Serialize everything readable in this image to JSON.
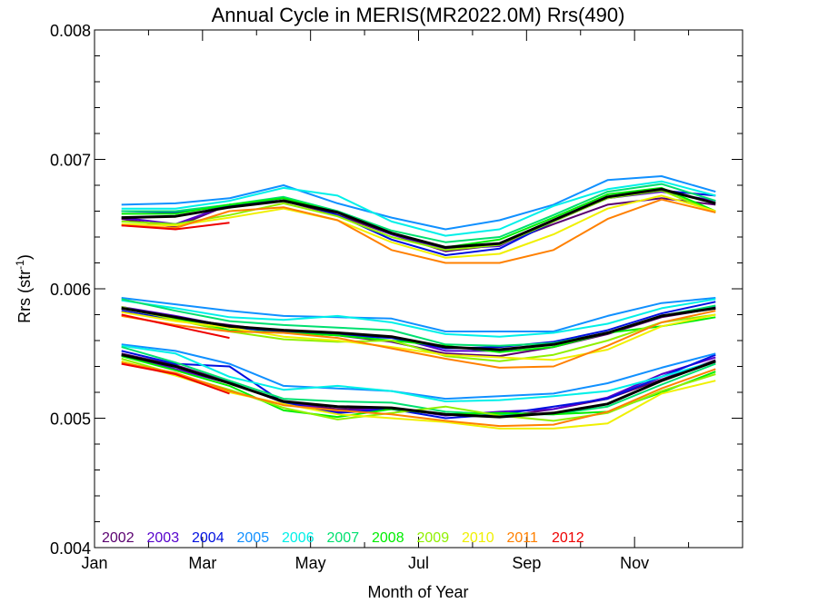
{
  "chart_data": {
    "type": "line",
    "title": "Annual Cycle in MERIS(MR2022.0M) Rrs(490)",
    "xlabel": "Month of Year",
    "ylabel": "Rrs (str",
    "ylabel_sup": "-1",
    "ylabel_close": ")",
    "xlim": [
      0,
      12
    ],
    "ylim": [
      0.004,
      0.008
    ],
    "xticks": [
      {
        "pos": 0,
        "label": "Jan"
      },
      {
        "pos": 2,
        "label": "Mar"
      },
      {
        "pos": 4,
        "label": "May"
      },
      {
        "pos": 6,
        "label": "Jul"
      },
      {
        "pos": 8,
        "label": "Sep"
      },
      {
        "pos": 10,
        "label": "Nov"
      }
    ],
    "yticks": [
      {
        "pos": 0.004,
        "label": "0.004"
      },
      {
        "pos": 0.005,
        "label": "0.005"
      },
      {
        "pos": 0.006,
        "label": "0.006"
      },
      {
        "pos": 0.007,
        "label": "0.007"
      },
      {
        "pos": 0.008,
        "label": "0.008"
      }
    ],
    "x": [
      0.5,
      1.5,
      2.5,
      3.5,
      4.5,
      5.5,
      6.5,
      7.5,
      8.5,
      9.5,
      10.5,
      11.5
    ],
    "legend_position": "bottom-left",
    "grid": false,
    "groups": [
      {
        "label_group": "upper",
        "series": [
          {
            "name": "2002",
            "color": "#5a0070",
            "values": [
              0.00654,
              0.00648,
              0.00665,
              0.00668,
              0.00657,
              0.00642,
              0.00629,
              0.00634,
              0.0065,
              0.00665,
              0.0067,
              0.00665
            ]
          },
          {
            "name": "2003",
            "color": "#5500cc",
            "values": [
              0.00655,
              0.0065,
              0.00665,
              0.0067,
              0.00659,
              0.00642,
              0.00631,
              0.00633,
              0.00653,
              0.0067,
              0.00675,
              0.00668
            ]
          },
          {
            "name": "2004",
            "color": "#0010e0",
            "values": [
              0.0066,
              0.00659,
              0.00664,
              0.0067,
              0.00657,
              0.00638,
              0.00626,
              0.00631,
              0.00652,
              0.0067,
              0.00676,
              0.00672
            ]
          },
          {
            "name": "2005",
            "color": "#1090ff",
            "values": [
              0.00665,
              0.00666,
              0.0067,
              0.0068,
              0.00666,
              0.00655,
              0.00646,
              0.00653,
              0.00665,
              0.00684,
              0.00687,
              0.00675
            ]
          },
          {
            "name": "2006",
            "color": "#00f0e8",
            "values": [
              0.00662,
              0.00662,
              0.00668,
              0.00678,
              0.00672,
              0.00652,
              0.00641,
              0.00646,
              0.00664,
              0.00677,
              0.00683,
              0.00672
            ]
          },
          {
            "name": "2007",
            "color": "#00e070",
            "values": [
              0.0066,
              0.0066,
              0.00665,
              0.00671,
              0.0066,
              0.00645,
              0.00636,
              0.0064,
              0.00657,
              0.00675,
              0.00681,
              0.00668
            ]
          },
          {
            "name": "2008",
            "color": "#00ee00",
            "values": [
              0.00658,
              0.00658,
              0.00665,
              0.0067,
              0.00659,
              0.00643,
              0.00632,
              0.00638,
              0.00655,
              0.00673,
              0.00678,
              0.0066
            ]
          },
          {
            "name": "2009",
            "color": "#90f000",
            "values": [
              0.00652,
              0.0065,
              0.00657,
              0.00666,
              0.00656,
              0.0064,
              0.0063,
              0.00634,
              0.00652,
              0.0067,
              0.00676,
              0.00659
            ]
          },
          {
            "name": "2010",
            "color": "#f0f000",
            "values": [
              0.0065,
              0.00649,
              0.00655,
              0.00662,
              0.00653,
              0.00636,
              0.00624,
              0.00627,
              0.00642,
              0.00662,
              0.00672,
              0.0066
            ]
          },
          {
            "name": "2011",
            "color": "#ff8000",
            "values": [
              0.00649,
              0.00647,
              0.0066,
              0.00663,
              0.00653,
              0.0063,
              0.0062,
              0.0062,
              0.0063,
              0.00654,
              0.00669,
              0.00659
            ]
          },
          {
            "name": "2012",
            "color": "#ee0000",
            "values": [
              0.00649,
              0.00646,
              0.00651,
              null,
              null,
              null,
              null,
              null,
              null,
              null,
              null,
              null
            ]
          },
          {
            "name": "",
            "color": "#000000",
            "values": [
              0.00655,
              0.00656,
              0.00663,
              0.00668,
              0.00659,
              0.00643,
              0.00632,
              0.00635,
              0.00653,
              0.00671,
              0.00677,
              0.00666
            ]
          }
        ]
      },
      {
        "label_group": "middle",
        "series": [
          {
            "name": "2002",
            "color": "#5a0070",
            "values": [
              0.00586,
              0.00577,
              0.00572,
              0.00567,
              0.00564,
              0.00559,
              0.0055,
              0.00548,
              0.00555,
              0.00565,
              0.00578,
              0.00585
            ]
          },
          {
            "name": "2003",
            "color": "#5500cc",
            "values": [
              0.00586,
              0.00579,
              0.00571,
              0.00568,
              0.00565,
              0.00563,
              0.00552,
              0.00552,
              0.00558,
              0.00566,
              0.00579,
              0.00586
            ]
          },
          {
            "name": "2004",
            "color": "#0010e0",
            "values": [
              0.00583,
              0.00576,
              0.0057,
              0.00567,
              0.00564,
              0.00562,
              0.00554,
              0.00555,
              0.00559,
              0.00568,
              0.00581,
              0.0059
            ]
          },
          {
            "name": "2005",
            "color": "#1090ff",
            "values": [
              0.00593,
              0.00588,
              0.00583,
              0.00579,
              0.00578,
              0.00577,
              0.00567,
              0.00567,
              0.00567,
              0.00579,
              0.00589,
              0.00593
            ]
          },
          {
            "name": "2006",
            "color": "#00f0e8",
            "values": [
              0.00591,
              0.00585,
              0.00578,
              0.00576,
              0.00579,
              0.00574,
              0.00565,
              0.00563,
              0.00566,
              0.00573,
              0.00585,
              0.00592
            ]
          },
          {
            "name": "2007",
            "color": "#00e070",
            "values": [
              0.00592,
              0.00583,
              0.00575,
              0.00572,
              0.0057,
              0.00568,
              0.00557,
              0.00556,
              0.00558,
              0.00566,
              0.00579,
              0.00587
            ]
          },
          {
            "name": "2008",
            "color": "#00ee00",
            "values": [
              0.00585,
              0.00577,
              0.00568,
              0.00566,
              0.00564,
              0.0056,
              0.00556,
              0.00551,
              0.00555,
              0.00566,
              0.00571,
              0.00578
            ]
          },
          {
            "name": "2009",
            "color": "#90f000",
            "values": [
              0.00586,
              0.00576,
              0.00567,
              0.00561,
              0.00559,
              0.0056,
              0.00548,
              0.00544,
              0.00549,
              0.0056,
              0.00574,
              0.0058
            ]
          },
          {
            "name": "2010",
            "color": "#f0f000",
            "values": [
              0.00582,
              0.00575,
              0.0057,
              0.00563,
              0.0056,
              0.00555,
              0.00549,
              0.00547,
              0.00545,
              0.00553,
              0.00571,
              0.0058
            ]
          },
          {
            "name": "2011",
            "color": "#ff8000",
            "values": [
              0.00579,
              0.00572,
              0.00567,
              0.00566,
              0.00562,
              0.00554,
              0.00546,
              0.00539,
              0.0054,
              0.00556,
              0.00574,
              0.00583
            ]
          },
          {
            "name": "2012",
            "color": "#ee0000",
            "values": [
              0.0058,
              0.00571,
              0.00562,
              null,
              null,
              null,
              null,
              null,
              null,
              null,
              null,
              null
            ]
          },
          {
            "name": "",
            "color": "#000000",
            "values": [
              0.00585,
              0.00578,
              0.00571,
              0.00568,
              0.00566,
              0.00563,
              0.00555,
              0.00553,
              0.00557,
              0.00566,
              0.00579,
              0.00585
            ]
          }
        ]
      },
      {
        "label_group": "lower",
        "series": [
          {
            "name": "2002",
            "color": "#5a0070",
            "values": [
              0.0055,
              0.00541,
              0.00528,
              0.00512,
              0.00507,
              0.00507,
              0.00503,
              0.00501,
              0.00507,
              0.00515,
              0.0053,
              0.00545
            ]
          },
          {
            "name": "2003",
            "color": "#5500cc",
            "values": [
              0.00549,
              0.00538,
              0.00527,
              0.00513,
              0.00505,
              0.00508,
              0.00502,
              0.00505,
              0.00507,
              0.00516,
              0.00534,
              0.00547
            ]
          },
          {
            "name": "2004",
            "color": "#0010e0",
            "values": [
              0.00552,
              0.00542,
              0.0054,
              0.00512,
              0.00504,
              0.00507,
              0.005,
              0.00503,
              0.00509,
              0.00515,
              0.00532,
              0.00549
            ]
          },
          {
            "name": "2005",
            "color": "#1090ff",
            "values": [
              0.00557,
              0.00552,
              0.00542,
              0.00525,
              0.00523,
              0.00521,
              0.00515,
              0.00517,
              0.00519,
              0.00527,
              0.00539,
              0.0055
            ]
          },
          {
            "name": "2006",
            "color": "#00f0e8",
            "values": [
              0.00556,
              0.0055,
              0.00532,
              0.00522,
              0.00525,
              0.00521,
              0.00513,
              0.00514,
              0.00517,
              0.00521,
              0.00532,
              0.00544
            ]
          },
          {
            "name": "2007",
            "color": "#00e070",
            "values": [
              0.00555,
              0.00543,
              0.00529,
              0.00515,
              0.00513,
              0.00512,
              0.00505,
              0.00503,
              0.00503,
              0.00509,
              0.00526,
              0.00542
            ]
          },
          {
            "name": "2008",
            "color": "#00ee00",
            "values": [
              0.00548,
              0.00537,
              0.00525,
              0.00506,
              0.00501,
              0.00507,
              0.00503,
              0.00504,
              0.00503,
              0.00505,
              0.0052,
              0.00536
            ]
          },
          {
            "name": "2009",
            "color": "#90f000",
            "values": [
              0.00546,
              0.00534,
              0.00522,
              0.00508,
              0.00499,
              0.00504,
              0.00509,
              0.00502,
              0.00498,
              0.00504,
              0.00521,
              0.00534
            ]
          },
          {
            "name": "2010",
            "color": "#f0f000",
            "values": [
              0.00544,
              0.00533,
              0.0052,
              0.00511,
              0.00503,
              0.005,
              0.00497,
              0.00492,
              0.00492,
              0.00496,
              0.00519,
              0.00529
            ]
          },
          {
            "name": "2011",
            "color": "#ff8000",
            "values": [
              0.00543,
              0.00535,
              0.00521,
              0.0051,
              0.00506,
              0.00503,
              0.00498,
              0.00494,
              0.00495,
              0.00505,
              0.00523,
              0.00538
            ]
          },
          {
            "name": "2012",
            "color": "#ee0000",
            "values": [
              0.00542,
              0.00534,
              0.00519,
              null,
              null,
              null,
              null,
              null,
              null,
              null,
              null,
              null
            ]
          },
          {
            "name": "",
            "color": "#000000",
            "values": [
              0.00549,
              0.0054,
              0.00527,
              0.00513,
              0.00509,
              0.00508,
              0.00503,
              0.00501,
              0.00504,
              0.00511,
              0.00529,
              0.00544
            ]
          }
        ]
      }
    ],
    "legend": [
      {
        "name": "2002",
        "color": "#5a0070"
      },
      {
        "name": "2003",
        "color": "#5500cc"
      },
      {
        "name": "2004",
        "color": "#0010e0"
      },
      {
        "name": "2005",
        "color": "#1090ff"
      },
      {
        "name": "2006",
        "color": "#00f0e8"
      },
      {
        "name": "2007",
        "color": "#00e070"
      },
      {
        "name": "2008",
        "color": "#00ee00"
      },
      {
        "name": "2009",
        "color": "#90f000"
      },
      {
        "name": "2010",
        "color": "#f0f000"
      },
      {
        "name": "2011",
        "color": "#ff8000"
      },
      {
        "name": "2012",
        "color": "#ee0000"
      }
    ]
  }
}
